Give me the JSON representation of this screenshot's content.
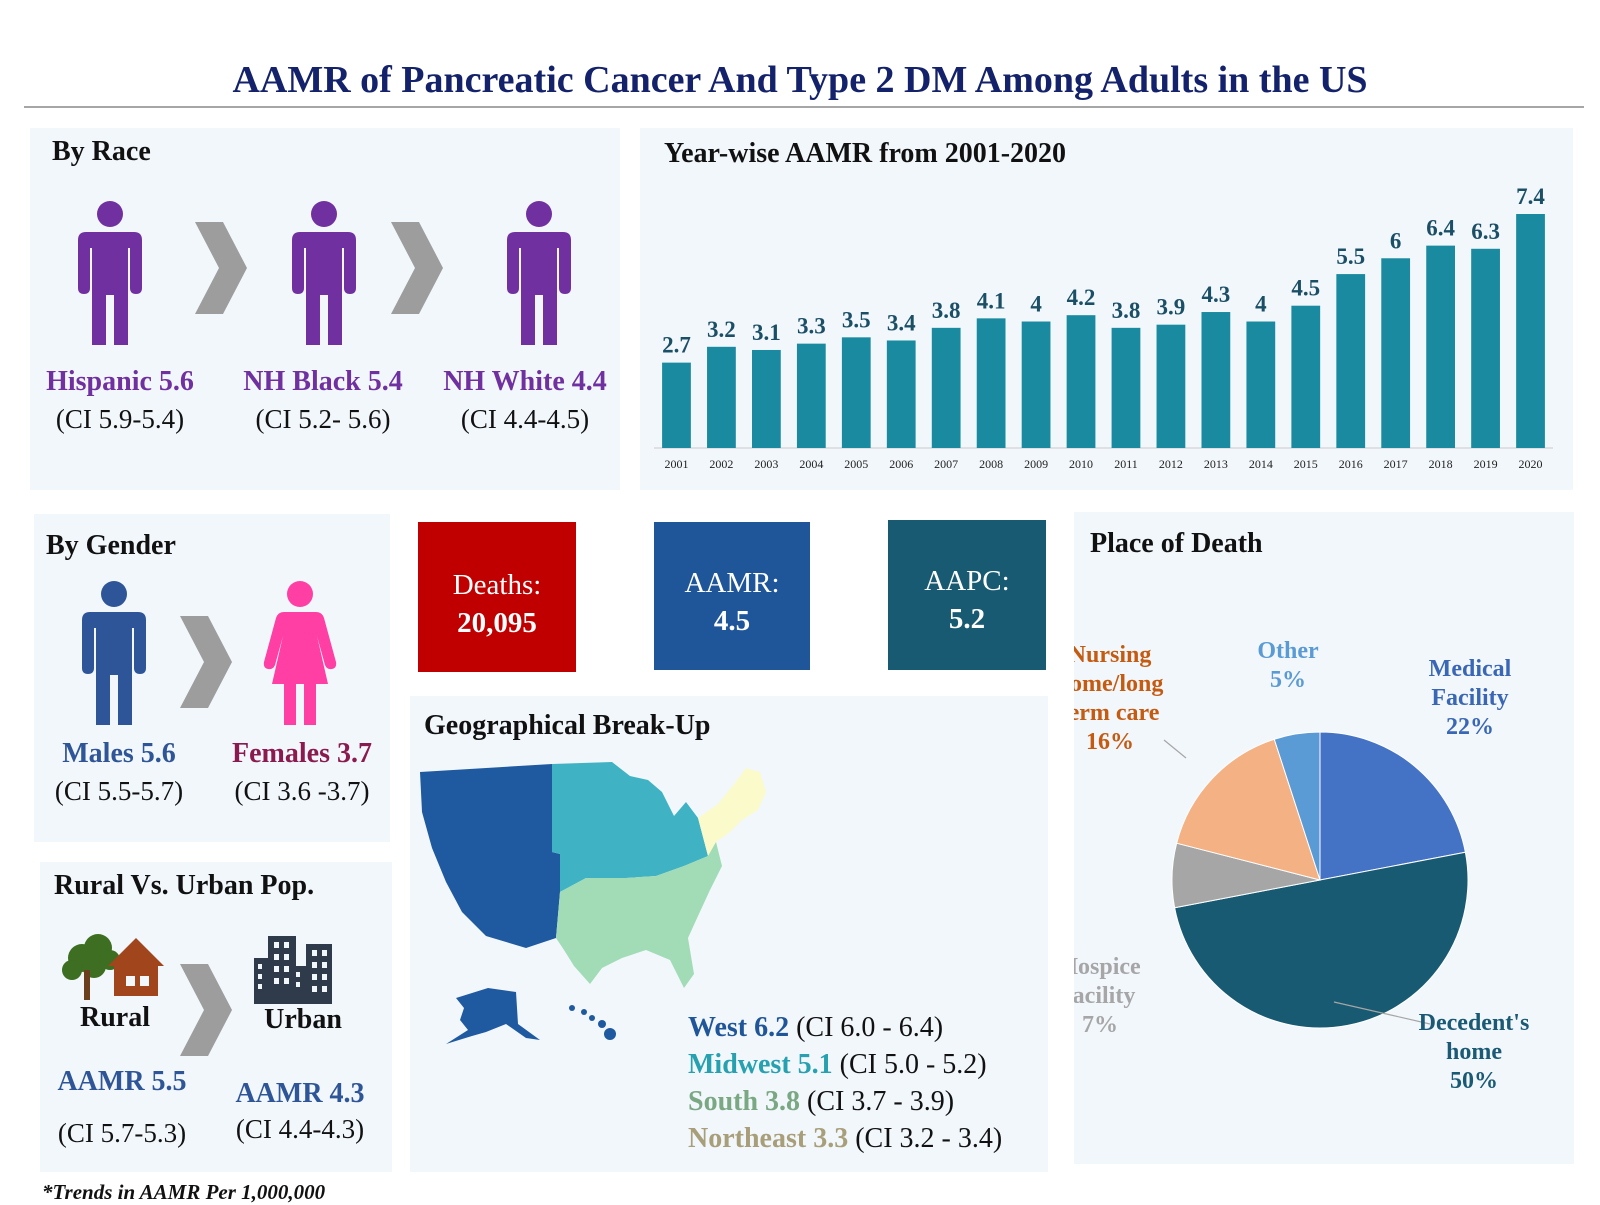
{
  "title": "AAMR of Pancreatic Cancer And Type 2 DM Among Adults in the US",
  "race": {
    "title": "By Race",
    "groups": [
      {
        "label": "Hispanic 5.6",
        "ci": "(CI 5.9-5.4)"
      },
      {
        "label": "NH Black 5.4",
        "ci": "(CI 5.2- 5.6)"
      },
      {
        "label": "NH White 4.4",
        "ci": "(CI 4.4-4.5)"
      }
    ],
    "color": "#7030a0"
  },
  "gender": {
    "title": "By Gender",
    "males": {
      "label": "Males 5.6",
      "ci": "(CI 5.5-5.7)",
      "color": "#2e5597"
    },
    "females": {
      "label": "Females 3.7",
      "ci": "(CI 3.6 -3.7)",
      "color": "#8b1a4f",
      "icon_color": "#ff3fa4"
    }
  },
  "rural_urban": {
    "title": "Rural Vs. Urban Pop.",
    "rural": {
      "label": "Rural",
      "aamr": "AAMR 5.5",
      "ci": "(CI 5.7-5.3)"
    },
    "urban": {
      "label": "Urban",
      "aamr": "AAMR 4.3",
      "ci": "(CI 4.4-4.3)"
    }
  },
  "kpis": [
    {
      "label": "Deaths:",
      "value": "20,095",
      "color": "#c00000"
    },
    {
      "label": "AAMR:",
      "value": "4.5",
      "color": "#1f5599"
    },
    {
      "label": "AAPC:",
      "value": "5.2",
      "color": "#195a73"
    }
  ],
  "geo": {
    "title": "Geographical Break-Up",
    "regions": [
      {
        "name": "West 6.2",
        "ci": "(CI 6.0 - 6.4)",
        "color": "#1f5599",
        "fill": "#1f5aa0"
      },
      {
        "name": "Midwest 5.1",
        "ci": "(CI 5.0 - 5.2)",
        "color": "#27a1b0",
        "fill": "#3fb3c4"
      },
      {
        "name": "South 3.8",
        "ci": "(CI 3.7 - 3.9)",
        "color": "#79a883",
        "fill": "#a2dcb6"
      },
      {
        "name": "Northeast 3.3",
        "ci": "(CI 3.2 - 3.4)",
        "color": "#a89f7a",
        "fill": "#fbfacb"
      }
    ]
  },
  "footnote": "*Trends in AAMR Per 1,000,000",
  "chart_data": [
    {
      "type": "bar",
      "title": "Year-wise AAMR from 2001-2020",
      "categories": [
        "2001",
        "2002",
        "2003",
        "2004",
        "2005",
        "2006",
        "2007",
        "2008",
        "2009",
        "2010",
        "2011",
        "2012",
        "2013",
        "2014",
        "2015",
        "2016",
        "2017",
        "2018",
        "2019",
        "2020"
      ],
      "values": [
        2.7,
        3.2,
        3.1,
        3.3,
        3.5,
        3.4,
        3.8,
        4.1,
        4,
        4.2,
        3.8,
        3.9,
        4.3,
        4,
        4.5,
        5.5,
        6,
        6.4,
        6.3,
        7.4
      ],
      "value_labels": [
        "2.7",
        "3.2",
        "3.1",
        "3.3",
        "3.5",
        "3.4",
        "3.8",
        "4.1",
        "4",
        "4.2",
        "3.8",
        "3.9",
        "4.3",
        "4",
        "4.5",
        "5.5",
        "6",
        "6.4",
        "6.3",
        "7.4"
      ],
      "ylim": [
        0,
        7.4
      ],
      "grid": false,
      "color": "#1a8aa0"
    },
    {
      "type": "pie",
      "title": "Place of Death",
      "slices": [
        {
          "name": "Medical Facility",
          "label_lines": [
            "Medical",
            "Facility",
            "22%"
          ],
          "value": 22,
          "color": "#4472c4",
          "text_color": "#3a67b5"
        },
        {
          "name": "Decedent's home",
          "label_lines": [
            "Decedent's",
            "home",
            "50%"
          ],
          "value": 50,
          "color": "#195a73",
          "text_color": "#1a5a75"
        },
        {
          "name": "Hospice facility",
          "label_lines": [
            "Hospice",
            "facility",
            "7%"
          ],
          "value": 7,
          "color": "#a6a6a6",
          "text_color": "#a6a6a6"
        },
        {
          "name": "Nursing home/long term care",
          "label_lines": [
            "Nursing",
            "home/long",
            "term care",
            "16%"
          ],
          "value": 16,
          "color": "#f4b183",
          "text_color": "#c55a11"
        },
        {
          "name": "Other",
          "label_lines": [
            "Other",
            "5%"
          ],
          "value": 5,
          "color": "#5b9bd5",
          "text_color": "#5b9bd5"
        }
      ]
    }
  ]
}
